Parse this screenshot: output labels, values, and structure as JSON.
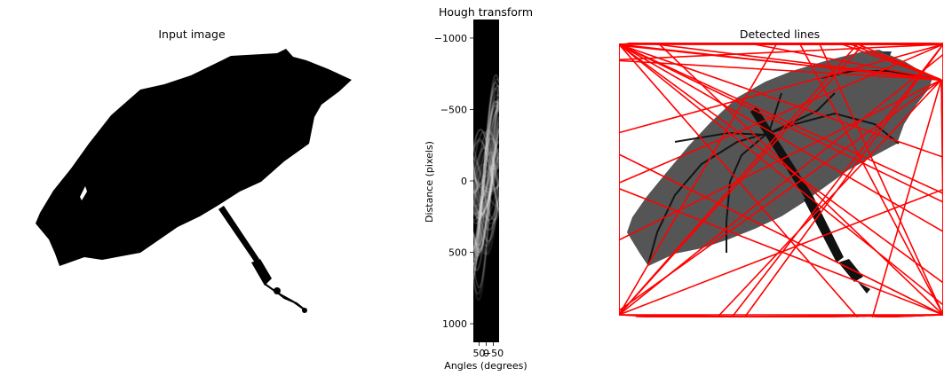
{
  "panels": {
    "input": {
      "title": "Input image"
    },
    "hough": {
      "title": "Hough transform"
    },
    "lines": {
      "title": "Detected lines"
    }
  },
  "chart_data": [
    {
      "type": "image",
      "title": "Input image",
      "description_visible": "black silhouette of an open umbrella on white background, no axes"
    },
    {
      "type": "heatmap",
      "title": "Hough transform",
      "xlabel": "Angles (degrees)",
      "ylabel": "Distance (pixels)",
      "x_ticks": [
        "50",
        "0",
        "-50"
      ],
      "y_ticks": [
        -1000,
        -500,
        0,
        500,
        1000
      ],
      "xlim": [
        90,
        -90
      ],
      "ylim": [
        1130,
        -1130
      ],
      "colormap": "gray",
      "sinusoid_peak_angles": [
        -80,
        -45,
        -20,
        0,
        20,
        45,
        80
      ]
    },
    {
      "type": "image",
      "title": "Detected lines",
      "overlay_color": "#ff0000",
      "base_image": "grey umbrella with black edges",
      "line_count_approx": 70
    }
  ]
}
